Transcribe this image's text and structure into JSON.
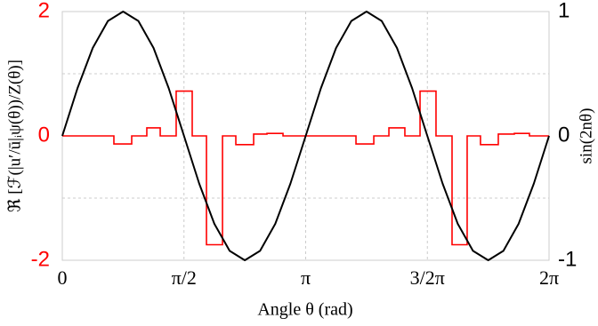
{
  "chart_data": {
    "type": "line",
    "x_label": "Angle θ (rad)",
    "y_label": "ℜ [ℱ(|u′/ū|ᵢψ(θ))/Z(θ)]",
    "y2_label": "sin(2nθ)",
    "xlim": [
      0,
      6.2832
    ],
    "xticks": [
      0,
      {
        "value": 1.5708,
        "label": "π/2"
      },
      {
        "value": 3.1416,
        "label": "π"
      },
      {
        "value": 4.7124,
        "label": "3/2π"
      },
      {
        "value": 6.2832,
        "label": "2π"
      }
    ],
    "ylim": [
      -2,
      2
    ],
    "yticks": [
      -2,
      0,
      2
    ],
    "y_color": "#ff0000",
    "y2lim": [
      -1,
      1
    ],
    "y2ticks": [
      -1,
      0,
      1
    ],
    "ygrid": [
      -1,
      1
    ],
    "grid": true,
    "series": [
      {
        "color": "#ff0000",
        "step": true,
        "bins": [
          0,
          0.666,
          0.896,
          1.091,
          1.264,
          1.47,
          1.677,
          1.861,
          2.068,
          2.24,
          2.47,
          2.642,
          2.849,
          3.142,
          3.791,
          4.021,
          4.216,
          4.422,
          4.618,
          4.824,
          5.031,
          5.226,
          5.398,
          5.628,
          5.835,
          6.03,
          6.283
        ],
        "values": [
          0,
          -0.13,
          0,
          0.13,
          0,
          0.72,
          0,
          -1.75,
          0,
          -0.14,
          0.03,
          0.04,
          0,
          0,
          -0.13,
          0,
          0.13,
          0,
          0.72,
          0,
          -1.75,
          0,
          -0.14,
          0.03,
          0.04,
          0
        ]
      },
      {
        "color": "#000000",
        "axis": "y2",
        "x": [
          0,
          0.196,
          0.393,
          0.589,
          0.785,
          0.982,
          1.178,
          1.374,
          1.571,
          1.767,
          1.963,
          2.16,
          2.356,
          2.553,
          2.749,
          2.945,
          3.142,
          3.338,
          3.534,
          3.731,
          3.927,
          4.123,
          4.32,
          4.516,
          4.712,
          4.909,
          5.105,
          5.301,
          5.498,
          5.694,
          5.89,
          6.087,
          6.283
        ],
        "values": [
          0,
          0.383,
          0.707,
          0.924,
          1,
          0.924,
          0.707,
          0.383,
          0,
          -0.383,
          -0.707,
          -0.924,
          -1,
          -0.924,
          -0.707,
          -0.383,
          0,
          0.383,
          0.707,
          0.924,
          1,
          0.924,
          0.707,
          0.383,
          0,
          -0.383,
          -0.707,
          -0.924,
          -1,
          -0.924,
          -0.707,
          -0.383,
          0
        ]
      }
    ]
  }
}
